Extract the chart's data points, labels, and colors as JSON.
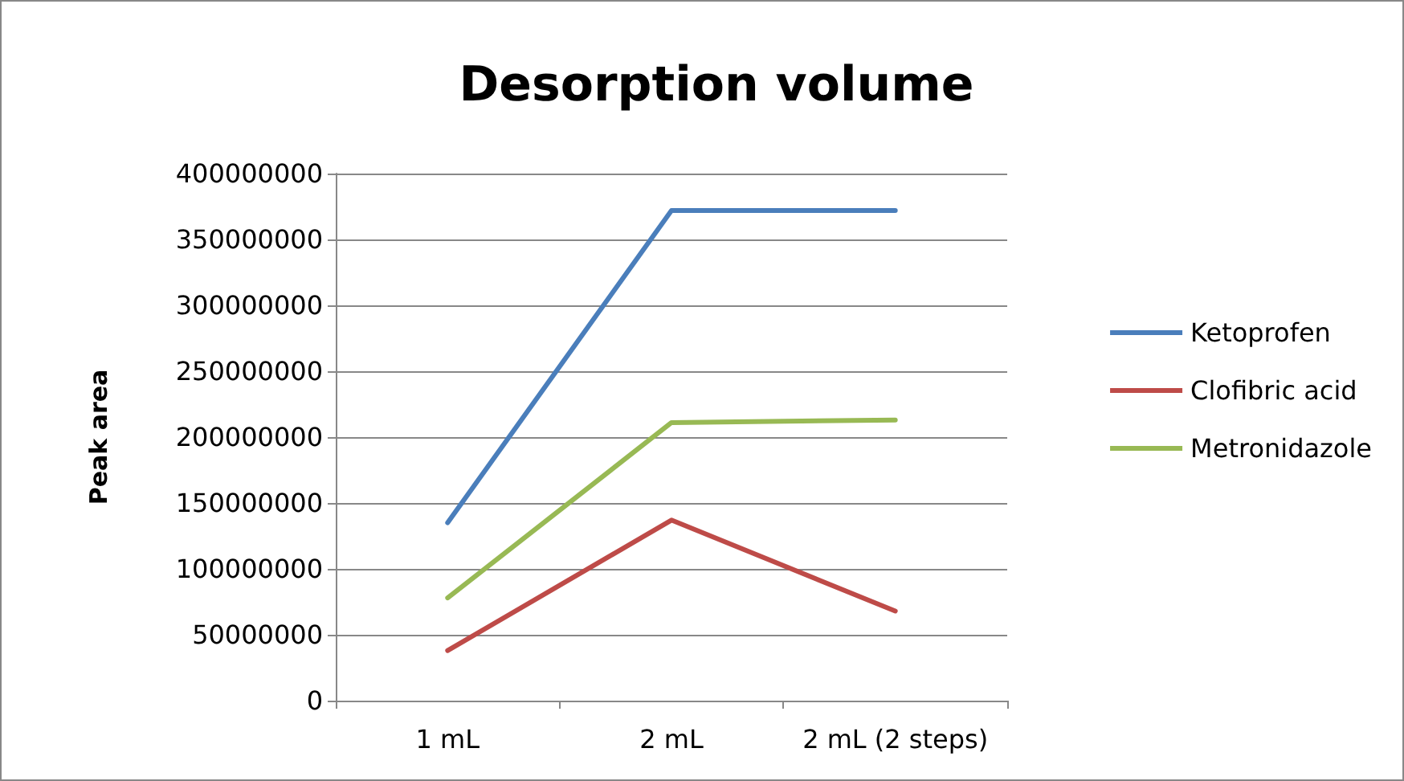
{
  "chart_data": {
    "type": "line",
    "title": "Desorption volume",
    "ylabel": "Peak area",
    "categories": [
      "1 mL",
      "2 mL",
      "2 mL (2 steps)"
    ],
    "series": [
      {
        "name": "Ketoprofen",
        "color": "#4a7ebb",
        "values": [
          135000000,
          372000000,
          372000000
        ]
      },
      {
        "name": "Clofibric acid",
        "color": "#be4b48",
        "values": [
          38000000,
          137000000,
          68000000
        ]
      },
      {
        "name": "Metronidazole",
        "color": "#98b954",
        "values": [
          78000000,
          211000000,
          213000000
        ]
      }
    ],
    "ylim": [
      0,
      400000000
    ],
    "yticks": [
      0,
      50000000,
      100000000,
      150000000,
      200000000,
      250000000,
      300000000,
      350000000,
      400000000
    ],
    "grid": "y",
    "legend": "right",
    "marker": "none",
    "line_style": "solid"
  }
}
